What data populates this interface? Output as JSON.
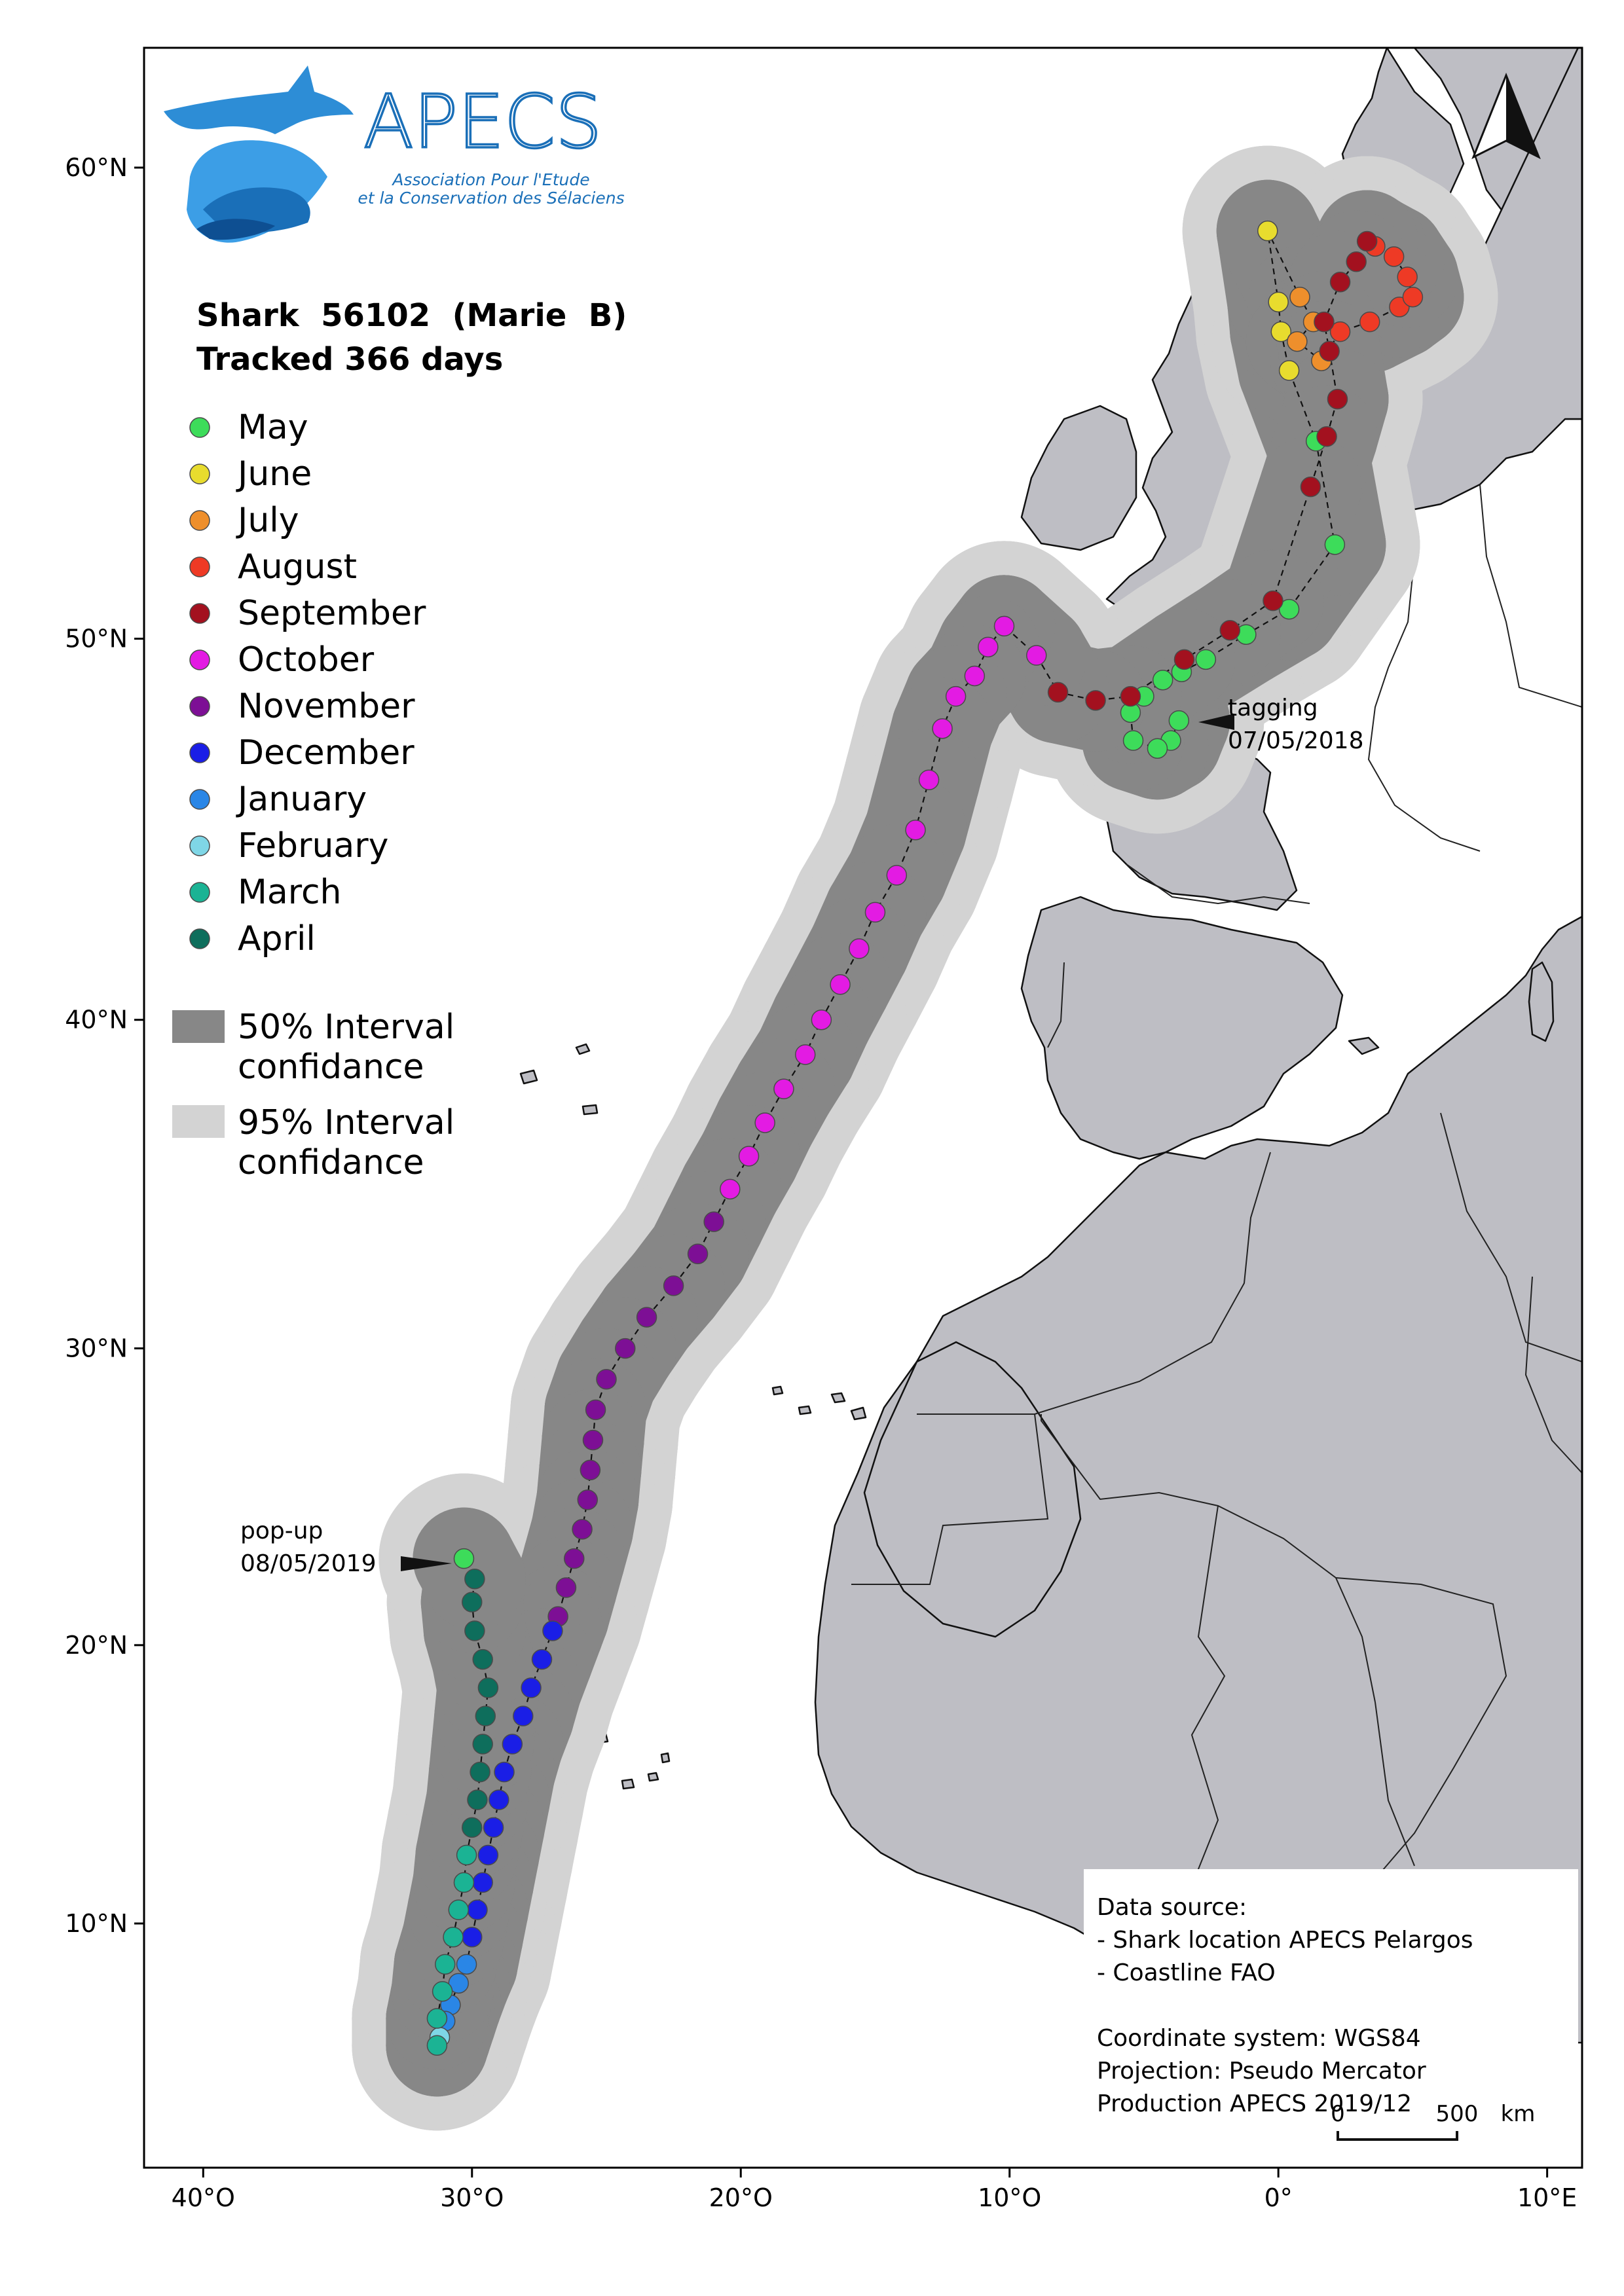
{
  "logo": {
    "name": "APECS",
    "subtitle_line1": "Association Pour l'Etude",
    "subtitle_line2": "et la Conservation des Sélaciens"
  },
  "title": {
    "line1": "Shark  56102  (Marie  B)",
    "line2": "Tracked 366 days"
  },
  "legend": {
    "months": [
      {
        "label": "May",
        "color": "#3ddc5a"
      },
      {
        "label": "June",
        "color": "#e8dc2e"
      },
      {
        "label": "July",
        "color": "#ee8f2c"
      },
      {
        "label": "August",
        "color": "#ee3a25"
      },
      {
        "label": "September",
        "color": "#a3111f"
      },
      {
        "label": "October",
        "color": "#e31be3"
      },
      {
        "label": "November",
        "color": "#7d0f95"
      },
      {
        "label": "December",
        "color": "#1a1ee6"
      },
      {
        "label": "January",
        "color": "#2a86e6"
      },
      {
        "label": "February",
        "color": "#7fd6e6"
      },
      {
        "label": "March",
        "color": "#1bb394"
      },
      {
        "label": "April",
        "color": "#0e6e5c"
      }
    ],
    "ci50": {
      "line1": "50% Interval",
      "line2": "confidance",
      "color": "#878787"
    },
    "ci95": {
      "line1": "95% Interval",
      "line2": "confidance",
      "color": "#d3d3d3"
    }
  },
  "annotations": {
    "tagging_label": "tagging",
    "tagging_date": "07/05/2018",
    "popup_label": "pop-up",
    "popup_date": "08/05/2019"
  },
  "axes": {
    "lat_ticks": [
      {
        "label": "60°N",
        "lat": 60
      },
      {
        "label": "50°N",
        "lat": 50
      },
      {
        "label": "40°N",
        "lat": 40
      },
      {
        "label": "30°N",
        "lat": 30
      },
      {
        "label": "20°N",
        "lat": 20
      },
      {
        "label": "10°N",
        "lat": 10
      }
    ],
    "lon_ticks": [
      {
        "label": "40°O",
        "lon": -40
      },
      {
        "label": "30°O",
        "lon": -30
      },
      {
        "label": "20°O",
        "lon": -20
      },
      {
        "label": "10°O",
        "lon": -10
      },
      {
        "label": "0°",
        "lon": 0
      },
      {
        "label": "10°E",
        "lon": 10
      }
    ],
    "extent": {
      "lon_min": -42.2,
      "lon_max": 11.3
    }
  },
  "info_box": {
    "lines": [
      "Data source:",
      "- Shark location APECS Pelargos",
      "- Coastline FAO",
      "",
      "Coordinate system: WGS84",
      "Projection: Pseudo Mercator",
      "Production APECS 2019/12"
    ]
  },
  "scale_bar": {
    "start": "0",
    "end": "500",
    "unit": "km"
  },
  "colors": {
    "land": "#bebec4",
    "coast": "#111111",
    "track_line": "#111111",
    "frame": "#000000"
  },
  "track": [
    {
      "lon": -3.7,
      "lat": 48.0,
      "m": 0
    },
    {
      "lon": -4.0,
      "lat": 47.5,
      "m": 0
    },
    {
      "lon": -4.5,
      "lat": 47.3,
      "m": 0
    },
    {
      "lon": -5.4,
      "lat": 47.5,
      "m": 0
    },
    {
      "lon": -5.5,
      "lat": 48.2,
      "m": 0
    },
    {
      "lon": -5.0,
      "lat": 48.6,
      "m": 0
    },
    {
      "lon": -4.3,
      "lat": 49.0,
      "m": 0
    },
    {
      "lon": -3.6,
      "lat": 49.2,
      "m": 0
    },
    {
      "lon": -2.7,
      "lat": 49.5,
      "m": 0
    },
    {
      "lon": -1.2,
      "lat": 50.1,
      "m": 0
    },
    {
      "lon": 0.4,
      "lat": 50.7,
      "m": 0
    },
    {
      "lon": 2.1,
      "lat": 52.2,
      "m": 0
    },
    {
      "lon": 1.4,
      "lat": 54.5,
      "m": 0
    },
    {
      "lon": 0.4,
      "lat": 56.0,
      "m": 1
    },
    {
      "lon": 0.1,
      "lat": 56.8,
      "m": 1
    },
    {
      "lon": 0.0,
      "lat": 57.4,
      "m": 1
    },
    {
      "lon": -0.4,
      "lat": 58.8,
      "m": 1
    },
    {
      "lon": 0.8,
      "lat": 57.5,
      "m": 2
    },
    {
      "lon": 1.3,
      "lat": 57.0,
      "m": 2
    },
    {
      "lon": 0.7,
      "lat": 56.6,
      "m": 2
    },
    {
      "lon": 1.6,
      "lat": 56.2,
      "m": 2
    },
    {
      "lon": 2.3,
      "lat": 56.8,
      "m": 3
    },
    {
      "lon": 3.4,
      "lat": 57.0,
      "m": 3
    },
    {
      "lon": 4.5,
      "lat": 57.3,
      "m": 3
    },
    {
      "lon": 5.0,
      "lat": 57.5,
      "m": 3
    },
    {
      "lon": 4.8,
      "lat": 57.9,
      "m": 3
    },
    {
      "lon": 4.3,
      "lat": 58.3,
      "m": 3
    },
    {
      "lon": 3.6,
      "lat": 58.5,
      "m": 3
    },
    {
      "lon": 3.3,
      "lat": 58.6,
      "m": 4
    },
    {
      "lon": 2.9,
      "lat": 58.2,
      "m": 4
    },
    {
      "lon": 2.3,
      "lat": 57.8,
      "m": 4
    },
    {
      "lon": 1.7,
      "lat": 57.0,
      "m": 4
    },
    {
      "lon": 1.9,
      "lat": 56.4,
      "m": 4
    },
    {
      "lon": 2.2,
      "lat": 55.4,
      "m": 4
    },
    {
      "lon": 1.8,
      "lat": 54.6,
      "m": 4
    },
    {
      "lon": 1.2,
      "lat": 53.5,
      "m": 4
    },
    {
      "lon": -0.2,
      "lat": 50.9,
      "m": 4
    },
    {
      "lon": -1.8,
      "lat": 50.2,
      "m": 4
    },
    {
      "lon": -3.5,
      "lat": 49.5,
      "m": 4
    },
    {
      "lon": -5.5,
      "lat": 48.6,
      "m": 4
    },
    {
      "lon": -6.8,
      "lat": 48.5,
      "m": 4
    },
    {
      "lon": -8.2,
      "lat": 48.7,
      "m": 4
    },
    {
      "lon": -9.0,
      "lat": 49.6,
      "m": 5
    },
    {
      "lon": -10.2,
      "lat": 50.3,
      "m": 5
    },
    {
      "lon": -10.8,
      "lat": 49.8,
      "m": 5
    },
    {
      "lon": -11.3,
      "lat": 49.1,
      "m": 5
    },
    {
      "lon": -12.0,
      "lat": 48.6,
      "m": 5
    },
    {
      "lon": -12.5,
      "lat": 47.8,
      "m": 5
    },
    {
      "lon": -13.0,
      "lat": 46.5,
      "m": 5
    },
    {
      "lon": -13.5,
      "lat": 45.2,
      "m": 5
    },
    {
      "lon": -14.2,
      "lat": 44.0,
      "m": 5
    },
    {
      "lon": -15.0,
      "lat": 43.0,
      "m": 5
    },
    {
      "lon": -15.6,
      "lat": 42.0,
      "m": 5
    },
    {
      "lon": -16.3,
      "lat": 41.0,
      "m": 5
    },
    {
      "lon": -17.0,
      "lat": 40.0,
      "m": 5
    },
    {
      "lon": -17.6,
      "lat": 39.0,
      "m": 5
    },
    {
      "lon": -18.4,
      "lat": 38.0,
      "m": 5
    },
    {
      "lon": -19.1,
      "lat": 37.0,
      "m": 5
    },
    {
      "lon": -19.7,
      "lat": 36.0,
      "m": 5
    },
    {
      "lon": -20.4,
      "lat": 35.0,
      "m": 5
    },
    {
      "lon": -21.0,
      "lat": 34.0,
      "m": 6
    },
    {
      "lon": -21.6,
      "lat": 33.0,
      "m": 6
    },
    {
      "lon": -22.5,
      "lat": 32.0,
      "m": 6
    },
    {
      "lon": -23.5,
      "lat": 31.0,
      "m": 6
    },
    {
      "lon": -24.3,
      "lat": 30.0,
      "m": 6
    },
    {
      "lon": -25.0,
      "lat": 29.0,
      "m": 6
    },
    {
      "lon": -25.4,
      "lat": 28.0,
      "m": 6
    },
    {
      "lon": -25.5,
      "lat": 27.0,
      "m": 6
    },
    {
      "lon": -25.6,
      "lat": 26.0,
      "m": 6
    },
    {
      "lon": -25.7,
      "lat": 25.0,
      "m": 6
    },
    {
      "lon": -25.9,
      "lat": 24.0,
      "m": 6
    },
    {
      "lon": -26.2,
      "lat": 23.0,
      "m": 6
    },
    {
      "lon": -26.5,
      "lat": 22.0,
      "m": 6
    },
    {
      "lon": -26.8,
      "lat": 21.0,
      "m": 6
    },
    {
      "lon": -27.0,
      "lat": 20.5,
      "m": 7
    },
    {
      "lon": -27.4,
      "lat": 19.5,
      "m": 7
    },
    {
      "lon": -27.8,
      "lat": 18.5,
      "m": 7
    },
    {
      "lon": -28.1,
      "lat": 17.5,
      "m": 7
    },
    {
      "lon": -28.5,
      "lat": 16.5,
      "m": 7
    },
    {
      "lon": -28.8,
      "lat": 15.5,
      "m": 7
    },
    {
      "lon": -29.0,
      "lat": 14.5,
      "m": 7
    },
    {
      "lon": -29.2,
      "lat": 13.5,
      "m": 7
    },
    {
      "lon": -29.4,
      "lat": 12.5,
      "m": 7
    },
    {
      "lon": -29.6,
      "lat": 11.5,
      "m": 7
    },
    {
      "lon": -29.8,
      "lat": 10.5,
      "m": 7
    },
    {
      "lon": -30.0,
      "lat": 9.5,
      "m": 7
    },
    {
      "lon": -30.2,
      "lat": 8.5,
      "m": 8
    },
    {
      "lon": -30.5,
      "lat": 7.8,
      "m": 8
    },
    {
      "lon": -30.8,
      "lat": 7.0,
      "m": 8
    },
    {
      "lon": -31.0,
      "lat": 6.4,
      "m": 8
    },
    {
      "lon": -31.2,
      "lat": 5.8,
      "m": 9
    },
    {
      "lon": -31.3,
      "lat": 5.5,
      "m": 10
    },
    {
      "lon": -31.3,
      "lat": 6.5,
      "m": 10
    },
    {
      "lon": -31.1,
      "lat": 7.5,
      "m": 10
    },
    {
      "lon": -31.0,
      "lat": 8.5,
      "m": 10
    },
    {
      "lon": -30.7,
      "lat": 9.5,
      "m": 10
    },
    {
      "lon": -30.5,
      "lat": 10.5,
      "m": 10
    },
    {
      "lon": -30.3,
      "lat": 11.5,
      "m": 10
    },
    {
      "lon": -30.2,
      "lat": 12.5,
      "m": 10
    },
    {
      "lon": -30.0,
      "lat": 13.5,
      "m": 11
    },
    {
      "lon": -29.8,
      "lat": 14.5,
      "m": 11
    },
    {
      "lon": -29.7,
      "lat": 15.5,
      "m": 11
    },
    {
      "lon": -29.6,
      "lat": 16.5,
      "m": 11
    },
    {
      "lon": -29.5,
      "lat": 17.5,
      "m": 11
    },
    {
      "lon": -29.4,
      "lat": 18.5,
      "m": 11
    },
    {
      "lon": -29.6,
      "lat": 19.5,
      "m": 11
    },
    {
      "lon": -29.9,
      "lat": 20.5,
      "m": 11
    },
    {
      "lon": -30.0,
      "lat": 21.5,
      "m": 11
    },
    {
      "lon": -29.9,
      "lat": 22.3,
      "m": 11
    },
    {
      "lon": -30.3,
      "lat": 23.0,
      "m": 0
    }
  ]
}
